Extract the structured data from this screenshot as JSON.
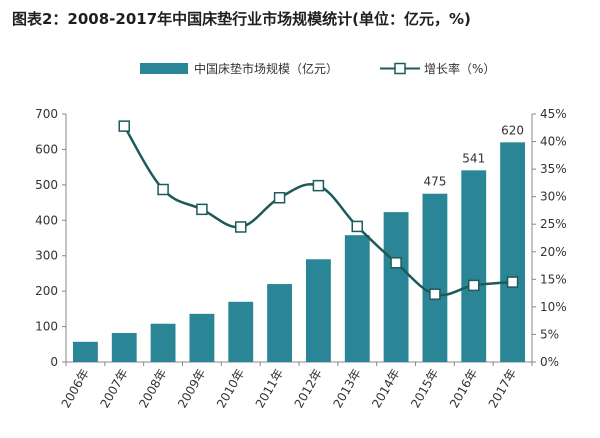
{
  "chart_data": {
    "type": "bar+line",
    "title": "图表2：2008-2017年中国床垫行业市场规模统计(单位：亿元，%)",
    "categories": [
      "2006年",
      "2007年",
      "2008年",
      "2009年",
      "2010年",
      "2011年",
      "2012年",
      "2013年",
      "2014年",
      "2015年",
      "2016年",
      "2017年"
    ],
    "series": [
      {
        "name": "中国床垫市场规模（亿元）",
        "type": "bar",
        "axis": "left",
        "values": [
          57,
          82,
          108,
          136,
          170,
          220,
          290,
          358,
          423,
          475,
          541,
          620
        ],
        "data_labels": [
          "",
          "",
          "",
          "",
          "",
          "",
          "",
          "",
          "",
          "475",
          "541",
          "620"
        ]
      },
      {
        "name": "增长率（%）",
        "type": "line",
        "axis": "right",
        "values": [
          null,
          42.8,
          31.3,
          27.7,
          24.5,
          29.8,
          32.0,
          24.6,
          18.0,
          12.3,
          13.9,
          14.5
        ]
      }
    ],
    "y_left": {
      "min": 0,
      "max": 700,
      "ticks": [
        "0",
        "100",
        "200",
        "300",
        "400",
        "500",
        "600",
        "700"
      ]
    },
    "y_right": {
      "min": 0,
      "max": 45,
      "ticks": [
        "0%",
        "5%",
        "10%",
        "15%",
        "20%",
        "25%",
        "30%",
        "35%",
        "40%",
        "45%"
      ]
    },
    "grid": false,
    "legend_position": "top",
    "colors": {
      "bar": "#2a8696",
      "line": "#1e5a5a",
      "marker_fill": "#ffffff"
    }
  }
}
